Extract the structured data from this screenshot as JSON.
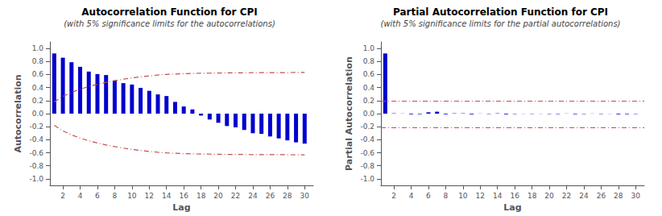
{
  "chart_data": [
    {
      "type": "bar",
      "title": "Autocorrelation Function for CPI",
      "subtitle": "(with 5% significance limits for the autocorrelations)",
      "xlabel": "Lag",
      "ylabel": "Autocorrelation",
      "x": [
        1,
        2,
        3,
        4,
        5,
        6,
        7,
        8,
        9,
        10,
        11,
        12,
        13,
        14,
        15,
        16,
        17,
        18,
        19,
        20,
        21,
        22,
        23,
        24,
        25,
        26,
        27,
        28,
        29,
        30
      ],
      "series": [
        {
          "type": "bar",
          "color": "#0000CD",
          "values": [
            0.923,
            0.858,
            0.789,
            0.718,
            0.645,
            0.607,
            0.592,
            0.51,
            0.468,
            0.446,
            0.395,
            0.35,
            0.295,
            0.27,
            0.18,
            0.11,
            0.065,
            -0.03,
            -0.09,
            -0.14,
            -0.19,
            -0.21,
            -0.25,
            -0.3,
            -0.31,
            -0.35,
            -0.38,
            -0.41,
            -0.44,
            -0.46
          ]
        },
        {
          "type": "line",
          "color": "#C0504D",
          "line_style": "dashdot",
          "values": [
            0.18,
            0.265,
            0.325,
            0.375,
            0.415,
            0.45,
            0.48,
            0.505,
            0.528,
            0.548,
            0.565,
            0.58,
            0.592,
            0.602,
            0.608,
            0.613,
            0.617,
            0.619,
            0.621,
            0.623,
            0.625,
            0.626,
            0.627,
            0.628,
            0.629,
            0.629,
            0.63,
            0.63,
            0.631,
            0.631
          ]
        },
        {
          "type": "line",
          "color": "#C0504D",
          "line_style": "dashdot",
          "values": [
            -0.18,
            -0.265,
            -0.325,
            -0.375,
            -0.415,
            -0.45,
            -0.48,
            -0.505,
            -0.528,
            -0.548,
            -0.565,
            -0.58,
            -0.592,
            -0.602,
            -0.608,
            -0.613,
            -0.617,
            -0.619,
            -0.621,
            -0.623,
            -0.625,
            -0.626,
            -0.627,
            -0.628,
            -0.629,
            -0.629,
            -0.63,
            -0.63,
            -0.631,
            -0.631
          ]
        }
      ],
      "xlim": [
        0.5,
        31
      ],
      "xticks": [
        2,
        4,
        6,
        8,
        10,
        12,
        14,
        16,
        18,
        20,
        22,
        24,
        26,
        28,
        30
      ],
      "ylim": [
        -1.1,
        1.1
      ],
      "yticks": [
        {
          "value": -1.0,
          "label": "-1.0"
        },
        -0.8,
        -0.6,
        -0.4,
        -0.2,
        {
          "value": 0.0,
          "label": "0.0"
        },
        0.2,
        0.4,
        0.6,
        0.8,
        {
          "value": 1.0,
          "label": "1.0"
        }
      ],
      "grid": false
    },
    {
      "type": "bar",
      "title": "Partial Autocorrelation Function for CPI",
      "subtitle": "(with 5% significance limits for the partial autocorrelations)",
      "xlabel": "Lag",
      "ylabel": "Partial Autocorrelation",
      "x": [
        1,
        2,
        3,
        4,
        5,
        6,
        7,
        8,
        9,
        10,
        11,
        12,
        13,
        14,
        15,
        16,
        17,
        18,
        19,
        20,
        21,
        22,
        23,
        24,
        25,
        26,
        27,
        28,
        29,
        30
      ],
      "series": [
        {
          "type": "bar",
          "color": "#0000CD",
          "values": [
            0.923,
            0.005,
            0.002,
            -0.01,
            -0.008,
            0.02,
            0.03,
            -0.01,
            0.005,
            0.005,
            -0.01,
            0.002,
            -0.005,
            0.005,
            -0.01,
            -0.005,
            -0.002,
            -0.004,
            -0.002,
            -0.005,
            -0.006,
            0.002,
            -0.008,
            -0.005,
            0.002,
            -0.005,
            -0.002,
            -0.01,
            -0.008,
            -0.005
          ]
        },
        {
          "type": "hline",
          "color": "#C0504D",
          "line_style": "dashdot",
          "value": 0.19
        },
        {
          "type": "hline",
          "color": "#C0504D",
          "line_style": "dashdot",
          "value": -0.21
        }
      ],
      "xlim": [
        0.5,
        31
      ],
      "xticks": [
        2,
        4,
        6,
        8,
        10,
        12,
        14,
        16,
        18,
        20,
        22,
        24,
        26,
        28,
        30
      ],
      "ylim": [
        -1.1,
        1.1
      ],
      "yticks": [
        {
          "value": -1.0,
          "label": "-1.0"
        },
        -0.8,
        -0.6,
        -0.4,
        -0.2,
        {
          "value": 0.0,
          "label": "0.0"
        },
        0.2,
        0.4,
        0.6,
        0.8,
        {
          "value": 1.0,
          "label": "1.0"
        }
      ],
      "grid": false
    }
  ]
}
